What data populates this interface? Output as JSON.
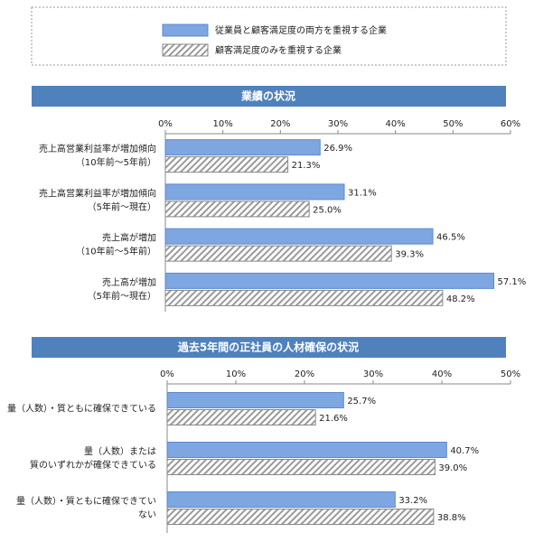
{
  "chart_data": [
    {
      "type": "hbar",
      "title": "業績の状況",
      "categories": [
        [
          "売上高営業利益率が増加傾向",
          "（10年前～5年前）"
        ],
        [
          "売上高営業利益率が増加傾向",
          "（5年前～現在）"
        ],
        [
          "売上高が増加",
          "（10年前～5年前）"
        ],
        [
          "売上高が増加",
          "（5年前～現在）"
        ]
      ],
      "series": [
        {
          "name": "従業員と顧客満足度の両方を重視する企業",
          "color": "#7ea6e0",
          "pattern": "solid",
          "values": [
            26.9,
            31.1,
            46.5,
            57.1
          ],
          "value_labels": [
            "26.9%",
            "31.1%",
            "46.5%",
            "57.1%"
          ]
        },
        {
          "name": "顧客満足度のみを重視する企業",
          "color": "#8c8c8c",
          "pattern": "hatch",
          "values": [
            21.3,
            25.0,
            39.3,
            48.2
          ],
          "value_labels": [
            "21.3%",
            "25.0%",
            "39.3%",
            "48.2%"
          ]
        }
      ],
      "xlim": [
        0,
        60
      ],
      "xticks": [
        {
          "value": 0,
          "label": "0%"
        },
        {
          "value": 10,
          "label": "10%"
        },
        {
          "value": 20,
          "label": "20%"
        },
        {
          "value": 30,
          "label": "30%"
        },
        {
          "value": 40,
          "label": "40%"
        },
        {
          "value": 50,
          "label": "50%"
        },
        {
          "value": 60,
          "label": "60%"
        }
      ],
      "grid": false
    },
    {
      "type": "hbar",
      "title": "過去5年間の正社員の人材確保の状況",
      "categories": [
        [
          "量（人数）・質ともに確保できている"
        ],
        [
          "量（人数）または",
          "質のいずれかが確保できている"
        ],
        [
          "量（人数）・質ともに確保できてい",
          "ない"
        ]
      ],
      "series": [
        {
          "color": "#7ea6e0",
          "pattern": "solid",
          "values": [
            25.7,
            40.7,
            33.2
          ],
          "value_labels": [
            "25.7%",
            "40.7%",
            "33.2%"
          ]
        },
        {
          "color": "#8c8c8c",
          "pattern": "hatch",
          "values": [
            21.6,
            39.0,
            38.8
          ],
          "value_labels": [
            "21.6%",
            "39.0%",
            "38.8%"
          ]
        }
      ],
      "xlim": [
        0,
        50
      ],
      "xticks": [
        {
          "value": 0,
          "label": "0%"
        },
        {
          "value": 10,
          "label": "10%"
        },
        {
          "value": 20,
          "label": "20%"
        },
        {
          "value": 30,
          "label": "30%"
        },
        {
          "value": 40,
          "label": "40%"
        },
        {
          "value": 50,
          "label": "50%"
        }
      ],
      "grid": false
    }
  ]
}
